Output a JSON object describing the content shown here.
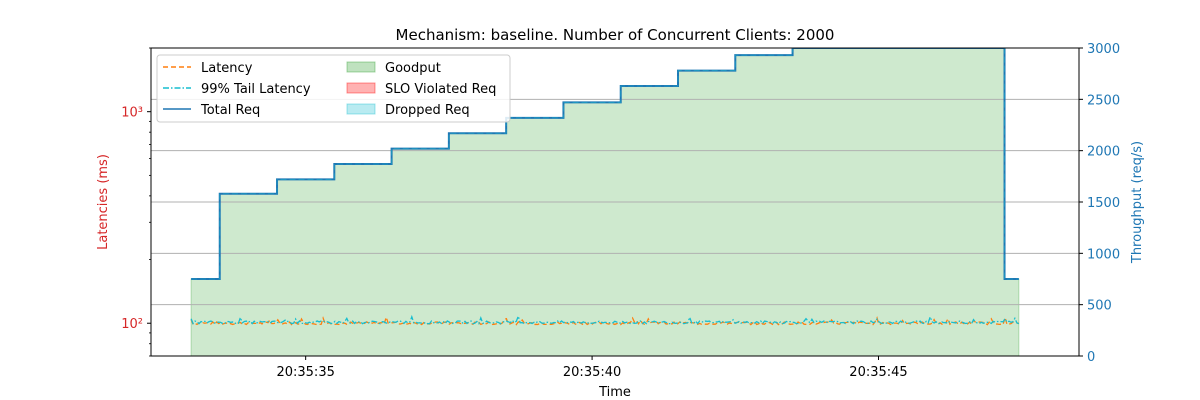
{
  "chart_data": {
    "type": "line",
    "title": "Mechanism: baseline. Number of Concurrent Clients: 2000",
    "xlabel": "Time",
    "ylabel_left": "Latencies (ms)",
    "ylabel_right": "Throughput (req/s)",
    "left_axis": {
      "scale": "log",
      "ylim": [
        70,
        2000
      ],
      "ticks": [
        100,
        1000
      ],
      "tick_labels": [
        "10²",
        "10³"
      ],
      "color": "#d62728"
    },
    "right_axis": {
      "scale": "linear",
      "ylim": [
        0,
        3000
      ],
      "ticks": [
        0,
        500,
        1000,
        1500,
        2000,
        2500,
        3000
      ],
      "tick_labels": [
        "0",
        "500",
        "1000",
        "1500",
        "2000",
        "2500",
        "3000"
      ],
      "color": "#1f77b4"
    },
    "x_axis": {
      "xlim": [
        32.3,
        48.5
      ],
      "ticks": [
        35,
        40,
        45
      ],
      "tick_labels": [
        "20:35:35",
        "20:35:40",
        "20:35:45"
      ]
    },
    "grid": "right-axis horizontal",
    "legend_placement": "top-left",
    "legend": [
      {
        "label": "Latency",
        "kind": "line-dashed",
        "color": "#ff7f0e"
      },
      {
        "label": "99% Tail Latency",
        "kind": "line-dashdot",
        "color": "#17becf"
      },
      {
        "label": "Total Req",
        "kind": "line-solid",
        "color": "#1f77b4"
      },
      {
        "label": "Goodput",
        "kind": "area",
        "color": "#2ca02c"
      },
      {
        "label": "SLO Violated Req",
        "kind": "area",
        "color": "#ff0000"
      },
      {
        "label": "Dropped Req",
        "kind": "area",
        "color": "#17becf"
      }
    ],
    "series": [
      {
        "name": "Total Req",
        "axis": "right",
        "step": true,
        "points": [
          [
            33.0,
            750
          ],
          [
            33.5,
            1580
          ],
          [
            34.5,
            1720
          ],
          [
            35.5,
            1870
          ],
          [
            36.5,
            2020
          ],
          [
            37.5,
            2170
          ],
          [
            38.5,
            2320
          ],
          [
            39.5,
            2470
          ],
          [
            40.5,
            2630
          ],
          [
            41.5,
            2780
          ],
          [
            42.5,
            2930
          ],
          [
            43.5,
            3000
          ],
          [
            47.2,
            750
          ],
          [
            47.45,
            750
          ]
        ]
      },
      {
        "name": "Goodput",
        "axis": "right",
        "step": true,
        "points": [
          [
            33.0,
            750
          ],
          [
            33.5,
            1580
          ],
          [
            34.5,
            1720
          ],
          [
            35.5,
            1870
          ],
          [
            36.5,
            2020
          ],
          [
            37.5,
            2170
          ],
          [
            38.5,
            2320
          ],
          [
            39.5,
            2470
          ],
          [
            40.5,
            2630
          ],
          [
            41.5,
            2780
          ],
          [
            42.5,
            2930
          ],
          [
            43.5,
            3000
          ],
          [
            47.2,
            750
          ],
          [
            47.45,
            750
          ]
        ]
      },
      {
        "name": "Latency",
        "axis": "left",
        "x_start": 33.0,
        "x_end": 47.45,
        "typical": 100
      },
      {
        "name": "99% Tail Latency",
        "axis": "left",
        "x_start": 33.0,
        "x_end": 47.45,
        "typical": 101
      }
    ]
  }
}
